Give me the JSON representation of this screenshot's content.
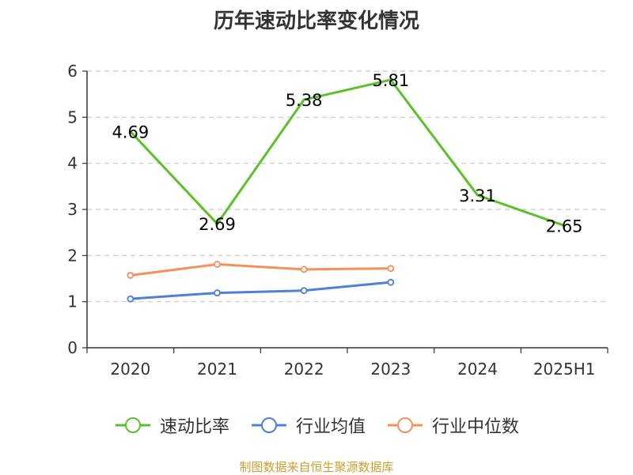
{
  "chart_data": {
    "type": "line",
    "title": "历年速动比率变化情况",
    "categories": [
      "2020",
      "2021",
      "2022",
      "2023",
      "2024",
      "2025H1"
    ],
    "ylim": [
      0,
      6
    ],
    "yticks": [
      "0",
      "1",
      "2",
      "3",
      "4",
      "5",
      "6"
    ],
    "grid": true,
    "legend_position": "bottom",
    "series": [
      {
        "name": "速动比率",
        "values": [
          4.69,
          2.69,
          5.38,
          5.81,
          3.31,
          2.65
        ],
        "labels": [
          "4.69",
          "2.69",
          "5.38",
          "5.81",
          "3.31",
          "2.65"
        ],
        "color": "#5cc02a"
      },
      {
        "name": "行业均值",
        "values": [
          1.06,
          1.19,
          1.24,
          1.42,
          null,
          null
        ],
        "color": "#4f7fd6"
      },
      {
        "name": "行业中位数",
        "values": [
          1.57,
          1.81,
          1.7,
          1.72,
          null,
          null
        ],
        "color": "#f5905a"
      }
    ]
  },
  "footer": {
    "source": "制图数据来自恒生聚源数据库"
  }
}
